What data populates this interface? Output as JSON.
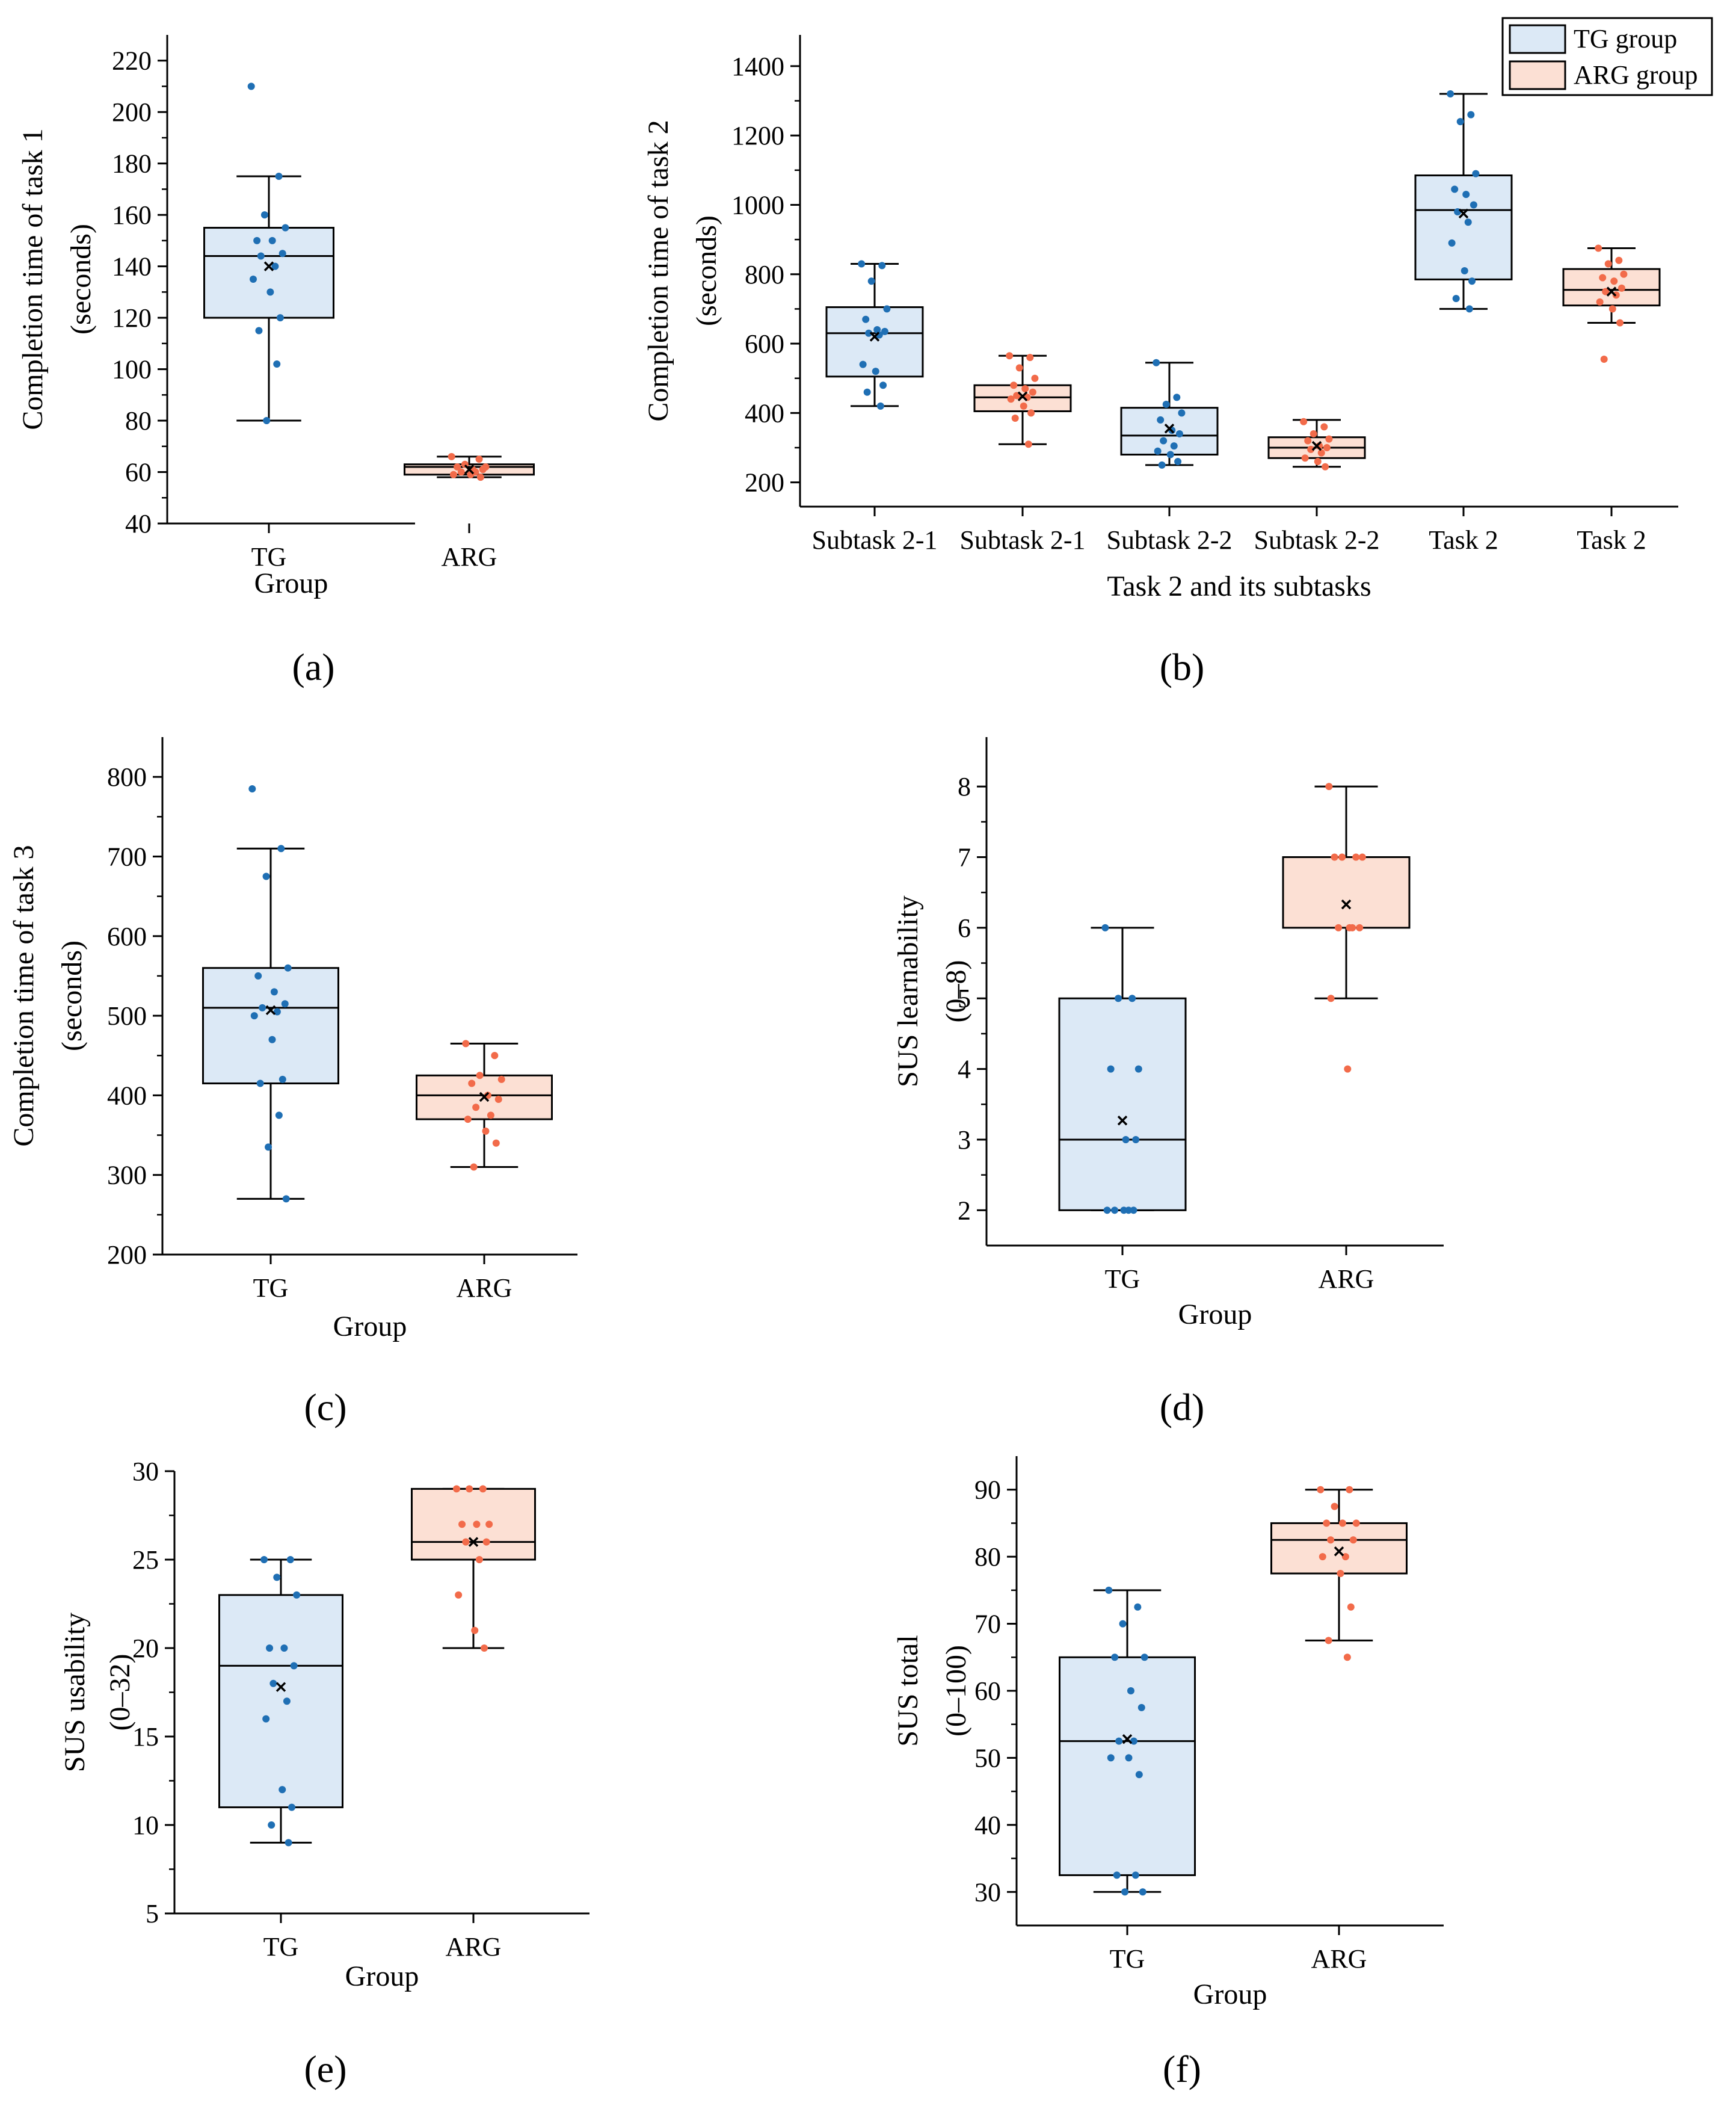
{
  "colors": {
    "tg_fill": "#dce9f6",
    "tg_dot": "#1f6fb4",
    "arg_fill": "#fce0d4",
    "arg_dot": "#f26b4a",
    "axis": "#000000"
  },
  "legend": [
    "TG group",
    "ARG group"
  ],
  "chart_data": [
    {
      "id": "a",
      "panel_label": "(a)",
      "type": "box",
      "ylabel": [
        "Completion time of task 1",
        "(seconds)"
      ],
      "xlabel": "Group",
      "ylim": [
        40,
        230
      ],
      "yticks": [
        40,
        60,
        80,
        100,
        120,
        140,
        160,
        180,
        200,
        220
      ],
      "boxes": [
        {
          "label": "TG",
          "group": "tg",
          "min": 80,
          "q1": 120,
          "median": 144,
          "q3": 155,
          "max": 175,
          "mean": 140,
          "points": [
            210,
            175,
            160,
            155,
            150,
            150,
            145,
            144,
            140,
            135,
            130,
            120,
            115,
            102,
            80
          ]
        },
        {
          "label": "ARG",
          "group": "arg",
          "min": 58,
          "q1": 59,
          "median": 62,
          "q3": 63,
          "max": 66,
          "mean": 61,
          "points": [
            66,
            65,
            63,
            62,
            62,
            61,
            61,
            60,
            60,
            59,
            59,
            58
          ]
        }
      ]
    },
    {
      "id": "b",
      "panel_label": "(b)",
      "type": "box",
      "ylabel": [
        "Completion time of task 2",
        "(seconds)"
      ],
      "xlabel": "Task 2 and its subtasks",
      "ylim": [
        130,
        1490
      ],
      "yticks": [
        200,
        400,
        600,
        800,
        1000,
        1200,
        1400
      ],
      "legend": true,
      "boxes": [
        {
          "label": "Subtask 2-1",
          "group": "tg",
          "min": 420,
          "q1": 505,
          "median": 630,
          "q3": 705,
          "max": 830,
          "mean": 620,
          "points": [
            830,
            825,
            780,
            700,
            670,
            640,
            635,
            630,
            625,
            540,
            520,
            480,
            460,
            420
          ]
        },
        {
          "label": "Subtask 2-1",
          "group": "arg",
          "min": 310,
          "q1": 405,
          "median": 445,
          "q3": 480,
          "max": 565,
          "mean": 448,
          "points": [
            565,
            560,
            530,
            500,
            480,
            470,
            460,
            450,
            445,
            440,
            420,
            400,
            385,
            310
          ]
        },
        {
          "label": "Subtask 2-2",
          "group": "tg",
          "min": 250,
          "q1": 280,
          "median": 335,
          "q3": 415,
          "max": 545,
          "mean": 355,
          "points": [
            545,
            445,
            425,
            400,
            380,
            350,
            340,
            320,
            305,
            290,
            280,
            260,
            250
          ]
        },
        {
          "label": "Subtask 2-2",
          "group": "arg",
          "min": 245,
          "q1": 270,
          "median": 300,
          "q3": 330,
          "max": 380,
          "mean": 305,
          "points": [
            375,
            360,
            340,
            325,
            320,
            305,
            300,
            295,
            285,
            270,
            260,
            245
          ]
        },
        {
          "label": "Task 2",
          "group": "tg",
          "min": 700,
          "q1": 785,
          "median": 985,
          "q3": 1085,
          "max": 1320,
          "mean": 975,
          "points": [
            1320,
            1260,
            1240,
            1090,
            1045,
            1030,
            1000,
            980,
            950,
            890,
            810,
            780,
            730,
            700
          ]
        },
        {
          "label": "Task 2",
          "group": "arg",
          "min": 660,
          "q1": 710,
          "median": 755,
          "q3": 815,
          "max": 875,
          "mean": 750,
          "points": [
            875,
            840,
            830,
            800,
            790,
            780,
            760,
            750,
            740,
            720,
            700,
            660,
            555
          ]
        }
      ]
    },
    {
      "id": "c",
      "panel_label": "(c)",
      "type": "box",
      "ylabel": [
        "Completion time of task 3",
        "(seconds)"
      ],
      "xlabel": "Group",
      "ylim": [
        200,
        850
      ],
      "yticks": [
        200,
        300,
        400,
        500,
        600,
        700,
        800
      ],
      "boxes": [
        {
          "label": "TG",
          "group": "tg",
          "min": 270,
          "q1": 415,
          "median": 510,
          "q3": 560,
          "max": 710,
          "mean": 507,
          "points": [
            785,
            710,
            675,
            560,
            550,
            530,
            515,
            510,
            505,
            500,
            470,
            420,
            415,
            375,
            335,
            270
          ]
        },
        {
          "label": "ARG",
          "group": "arg",
          "min": 310,
          "q1": 370,
          "median": 400,
          "q3": 425,
          "max": 465,
          "mean": 398,
          "points": [
            465,
            450,
            425,
            420,
            415,
            400,
            395,
            385,
            375,
            370,
            355,
            340,
            310
          ]
        }
      ]
    },
    {
      "id": "d",
      "panel_label": "(d)",
      "type": "box",
      "ylabel": [
        "SUS learnability",
        "(0–8)"
      ],
      "xlabel": "Group",
      "ylim": [
        1.5,
        8.7
      ],
      "yticks": [
        2,
        3,
        4,
        5,
        6,
        7,
        8
      ],
      "boxes": [
        {
          "label": "TG",
          "group": "tg",
          "min": 2,
          "q1": 2,
          "median": 3,
          "q3": 5,
          "max": 6,
          "mean": 3.27,
          "points": [
            6,
            5,
            5,
            4,
            4,
            3,
            3,
            2,
            2,
            2,
            2,
            2
          ]
        },
        {
          "label": "ARG",
          "group": "arg",
          "min": 5,
          "q1": 6,
          "median": 7,
          "q3": 7,
          "max": 8,
          "mean": 6.33,
          "points": [
            8,
            7,
            7,
            7,
            7,
            6,
            6,
            6,
            6,
            5,
            4
          ]
        }
      ]
    },
    {
      "id": "e",
      "panel_label": "(e)",
      "type": "box",
      "ylabel": [
        "SUS usability",
        "(0–32)"
      ],
      "xlabel": "Group",
      "ylim": [
        5,
        30
      ],
      "yticks": [
        5,
        10,
        15,
        20,
        25,
        30
      ],
      "boxes": [
        {
          "label": "TG",
          "group": "tg",
          "min": 9,
          "q1": 11,
          "median": 19,
          "q3": 23,
          "max": 25,
          "mean": 17.8,
          "points": [
            25,
            25,
            24,
            23,
            20,
            20,
            19,
            18,
            17,
            16,
            12,
            11,
            10,
            9
          ]
        },
        {
          "label": "ARG",
          "group": "arg",
          "min": 20,
          "q1": 25,
          "median": 26,
          "q3": 29,
          "max": 29,
          "mean": 26,
          "points": [
            29,
            29,
            29,
            27,
            27,
            27,
            26,
            26,
            25,
            23,
            21,
            20
          ]
        }
      ]
    },
    {
      "id": "f",
      "panel_label": "(f)",
      "type": "box",
      "ylabel": [
        "SUS total",
        "(0–100)"
      ],
      "xlabel": "Group",
      "ylim": [
        25,
        95
      ],
      "yticks": [
        30,
        40,
        50,
        60,
        70,
        80,
        90
      ],
      "boxes": [
        {
          "label": "TG",
          "group": "tg",
          "min": 30,
          "q1": 32.5,
          "median": 52.5,
          "q3": 65,
          "max": 75,
          "mean": 52.8,
          "points": [
            75,
            72.5,
            70,
            65,
            65,
            60,
            57.5,
            52.5,
            52.5,
            50,
            50,
            47.5,
            32.5,
            32.5,
            30,
            30
          ]
        },
        {
          "label": "ARG",
          "group": "arg",
          "min": 67.5,
          "q1": 77.5,
          "median": 82.5,
          "q3": 85,
          "max": 90,
          "mean": 80.8,
          "points": [
            90,
            90,
            87.5,
            85,
            85,
            85,
            82.5,
            82.5,
            80,
            80,
            77.5,
            72.5,
            67.5,
            65
          ]
        }
      ]
    }
  ]
}
